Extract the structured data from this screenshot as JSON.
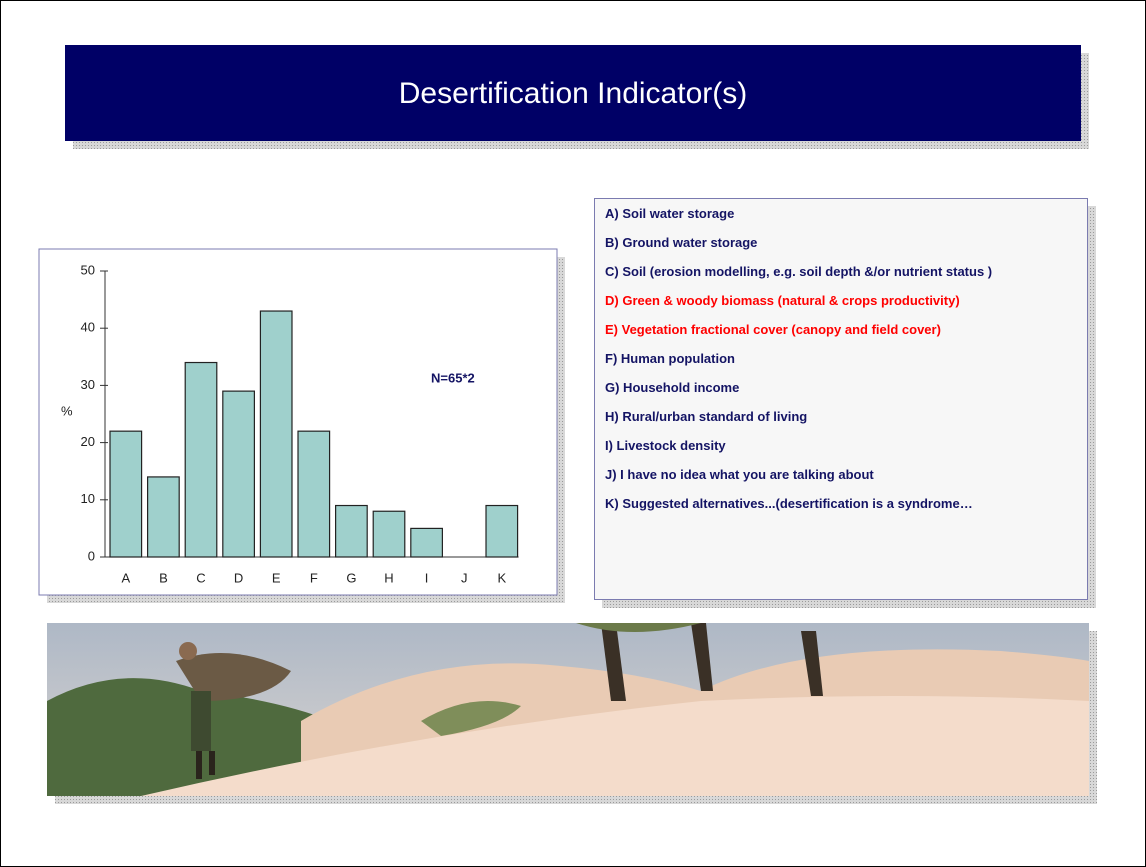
{
  "title": "Desertification Indicator(s)",
  "chart_data": {
    "type": "bar",
    "categories": [
      "A",
      "B",
      "C",
      "D",
      "E",
      "F",
      "G",
      "H",
      "I",
      "J",
      "K"
    ],
    "values": [
      22,
      14,
      34,
      29,
      43,
      22,
      9,
      8,
      5,
      0,
      9
    ],
    "color": "#9fd0cc",
    "ylabel": "%",
    "annotation": "N=65*2",
    "ylim": [
      0,
      50
    ],
    "yticks": [
      0,
      10,
      20,
      30,
      40,
      50
    ]
  },
  "list": [
    {
      "text": "A) Soil water storage",
      "color": "#141464"
    },
    {
      "text": "B) Ground water storage",
      "color": "#141464"
    },
    {
      "text": "C) Soil (erosion modelling, e.g. soil depth &/or nutrient status )",
      "color": "#141464"
    },
    {
      "text": "D) Green & woody biomass (natural & crops productivity)",
      "color": "#ff0000"
    },
    {
      "text": "E) Vegetation fractional cover (canopy and field cover)",
      "color": "#ff0000"
    },
    {
      "text": "F) Human population",
      "color": "#141464"
    },
    {
      "text": "G) Household income",
      "color": "#141464"
    },
    {
      "text": "H) Rural/urban standard of living",
      "color": "#141464"
    },
    {
      "text": " I) Livestock density",
      "color": "#141464"
    },
    {
      "text": "J) I have no idea what you are talking about",
      "color": "#141464"
    },
    {
      "text": "K) Suggested alternatives...(desertification is a syndrome…",
      "color": "#141464"
    }
  ]
}
